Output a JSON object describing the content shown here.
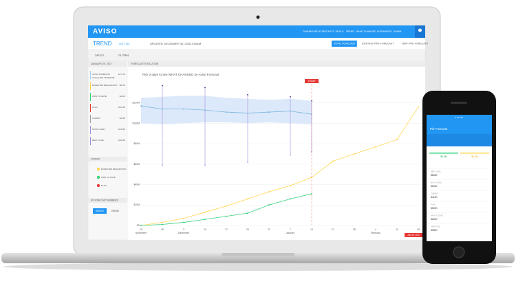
{
  "app": {
    "brand": "AVISO",
    "nav": [
      "DASHBOARD",
      "FORECASTS",
      "DEALS",
      "TREND",
      "WHAT CHANGED",
      "SCENARIOS",
      "ADMIN"
    ],
    "page_title": "TREND",
    "period": "2017 Q2",
    "updated": "UPDATED DECEMBER 30, 2016 3:00AM",
    "tabs": [
      "TOTAL FORECAST",
      "EXISTING PIPE FORECAST",
      "NEW PIPE FORECAST"
    ],
    "filters_row": [
      "SALES ...",
      "GLOBAL"
    ],
    "sidebar": {
      "date": "JANUARY 29, 2017",
      "metrics": [
        {
          "label": "AVISO FORECAST",
          "value": "$17.7M"
        },
        {
          "label": "EXPECTED REALIZATION",
          "value": "$8.7M"
        },
        {
          "label": "WON TO DATE",
          "value": "$4.1M"
        },
        {
          "label": "PLAN",
          "value": "$12.4M"
        },
        {
          "label": "COMMIT",
          "value": "$6.0M"
        },
        {
          "label": "MOST LIKELY",
          "value": "$14.5M"
        },
        {
          "label": "BEST CASE",
          "value": "$16.0M"
        }
      ],
      "change": "Change $10.7M-$16.8M",
      "filters_title": "FILTERS",
      "filters": [
        "EXPECTED REALIZATION",
        "WON TO DATE",
        "PLAN"
      ],
      "numbers_title": "MY FORECAST NUMBERS",
      "toggle": [
        "RANGE",
        "TREND"
      ]
    },
    "panel_title": "FORECAST EVOLUTION"
  },
  "chart_data": {
    "type": "line",
    "title": "Pick 2 days to see WHAT CHANGED on Aviso Forecast",
    "categories": [
      "19 November",
      "26",
      "3 December",
      "10",
      "17",
      "24",
      "31",
      "7 January",
      "14",
      "21",
      "28",
      "4 February",
      "11",
      "18"
    ],
    "series": [
      {
        "color": "#ffd54f",
        "values": [
          0,
          3,
          7,
          13,
          19,
          26,
          33,
          39,
          47,
          63,
          70,
          77,
          84,
          116
        ]
      },
      {
        "color": "#33d17a",
        "values": [
          0,
          1,
          3,
          6,
          9,
          12,
          20,
          26,
          31,
          null,
          null,
          null,
          null,
          null
        ]
      },
      {
        "color": "#7fb6dd",
        "values": [
          117,
          114,
          114,
          113,
          111,
          110,
          111,
          112,
          109,
          null,
          null,
          null,
          null,
          null
        ]
      }
    ],
    "band": {
      "color": "#dce9fa",
      "upper": [
        125,
        126,
        127,
        127,
        125,
        124,
        123,
        124,
        122,
        null,
        null,
        null,
        null,
        null
      ],
      "lower": [
        100,
        99,
        100,
        101,
        101,
        100,
        101,
        100,
        99,
        null,
        null,
        null,
        null,
        null
      ]
    },
    "ranges": {
      "color": "#a58be0",
      "high": [
        null,
        137,
        null,
        135,
        null,
        128,
        null,
        126,
        122,
        null,
        null,
        null,
        null,
        null
      ],
      "low": [
        null,
        59,
        null,
        59,
        null,
        62,
        null,
        69,
        72,
        null,
        null,
        null,
        null,
        null
      ]
    },
    "ylim": [
      0,
      140
    ],
    "yticks": [
      {
        "value": 0,
        "label": "$0"
      },
      {
        "value": 20,
        "label": "$20M"
      },
      {
        "value": 40,
        "label": "$40M"
      },
      {
        "value": 60,
        "label": "$60M"
      },
      {
        "value": 80,
        "label": "$80M"
      },
      {
        "value": 100,
        "label": "$100M"
      },
      {
        "value": 120,
        "label": "$120M"
      }
    ],
    "grid": true,
    "today_label": "TODAY",
    "end_label": "Jan 29, 2017"
  },
  "phone": {
    "time": "9:41 AM",
    "title": "Pie Forecast",
    "tiles": [
      "$9.6M",
      "$4.3M"
    ],
    "rows": [
      {
        "label": "BEST CASE",
        "value": "$845K"
      },
      {
        "label": "MOST LIKELY",
        "value": "$603K"
      },
      {
        "label": "COMMIT",
        "value": "$410K"
      },
      {
        "label": "PLAN",
        "value": "$520K"
      },
      {
        "label": "WON TO DATE",
        "value": "$260K"
      },
      {
        "label": "EXPECTED",
        "value": "$380K"
      }
    ]
  }
}
